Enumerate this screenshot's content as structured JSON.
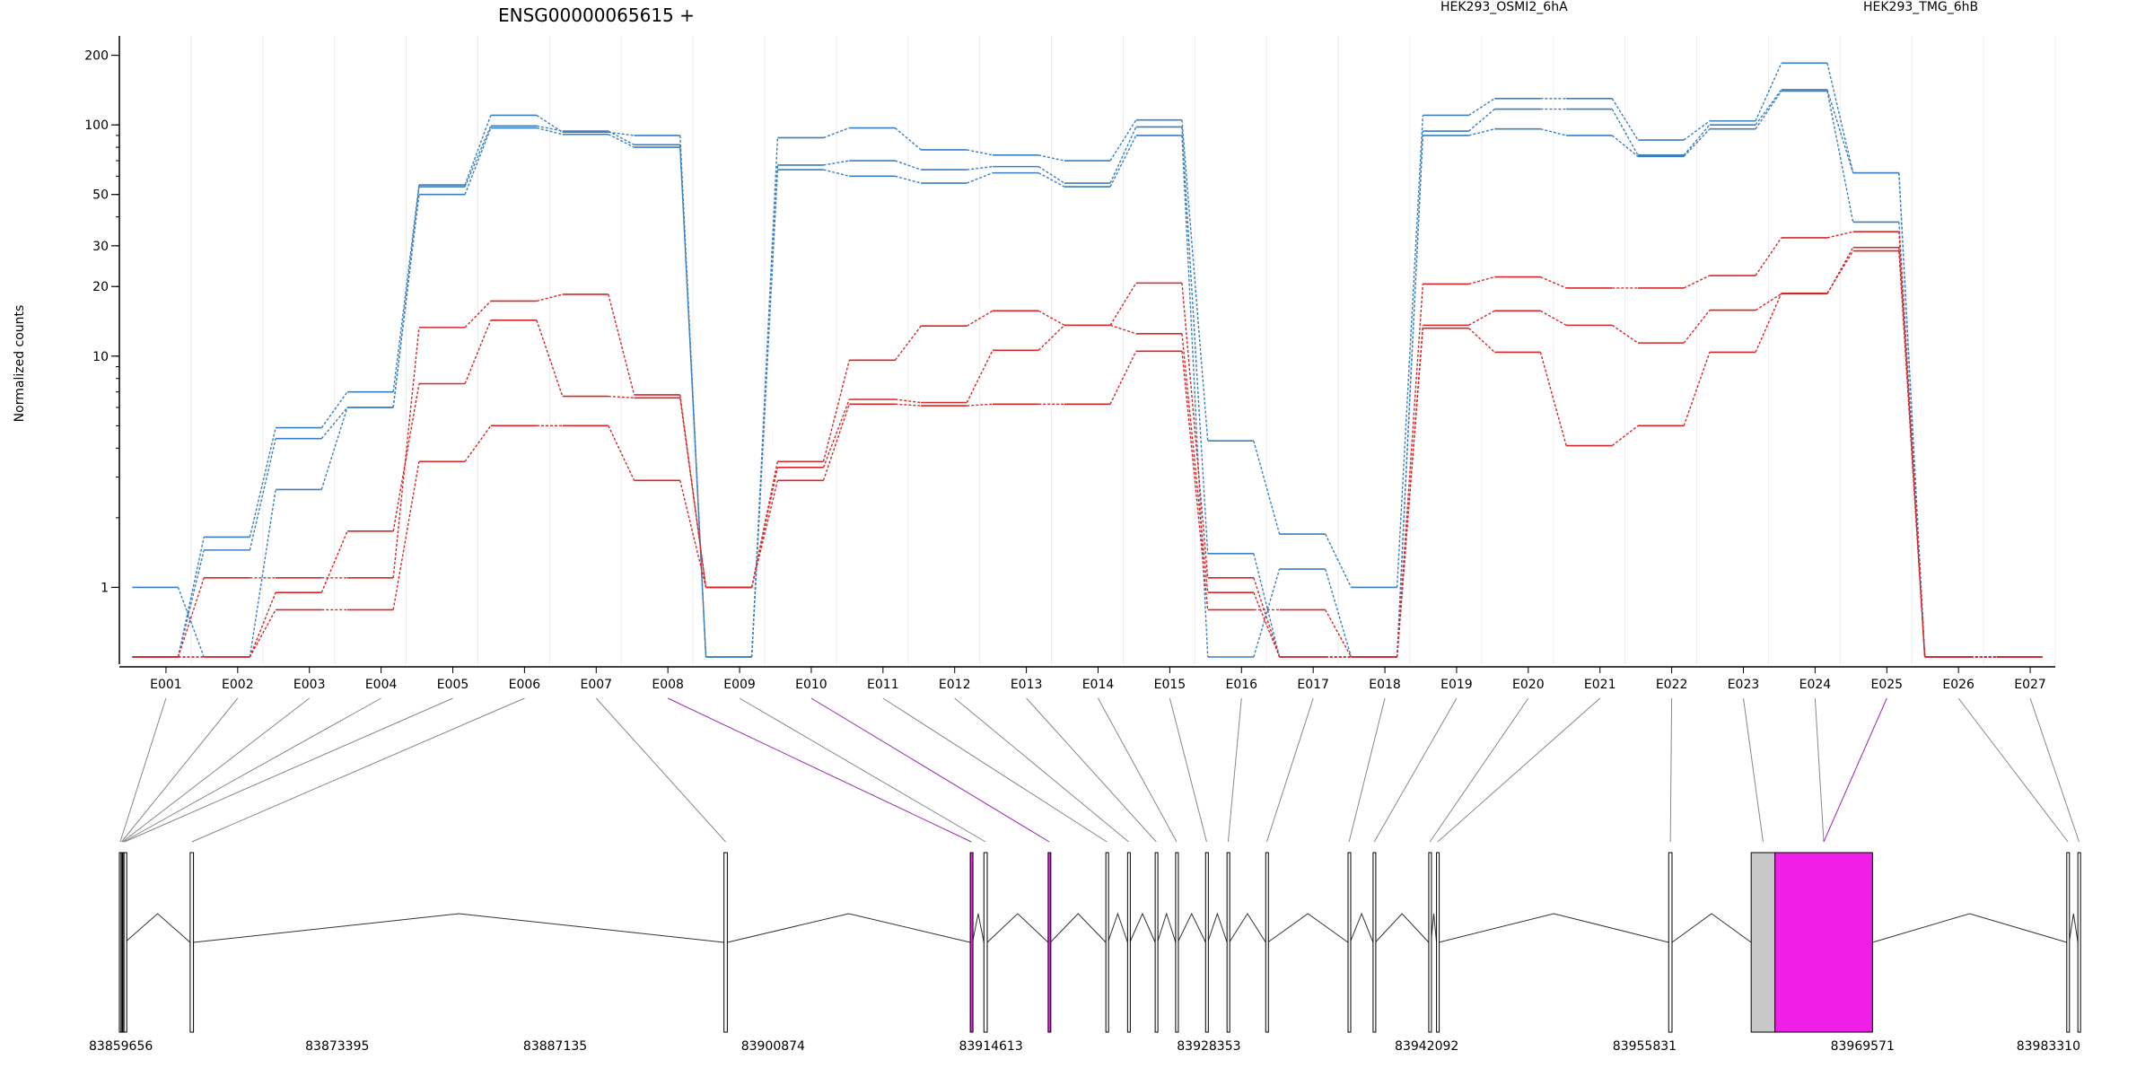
{
  "chart_data": {
    "type": "line",
    "title": "ENSG00000065615 +",
    "ylabel": "Normalized counts",
    "y_scale": "log",
    "y_ticks": [
      "200",
      "100",
      "50",
      "30",
      "20",
      "10",
      "1"
    ],
    "y_tick_values": [
      200,
      100,
      50,
      30,
      20,
      10,
      1
    ],
    "ylim": [
      0.5,
      270
    ],
    "grid": "vertical",
    "legend_position": "top",
    "groups": [
      {
        "name": "HEK293_OSMI2_6hA",
        "color": "#d62728"
      },
      {
        "name": "HEK293_TMG_6hB",
        "color": "#3a7fbf"
      }
    ],
    "categories": [
      "E001",
      "E002",
      "E003",
      "E004",
      "E005",
      "E006",
      "E007",
      "E008",
      "E009",
      "E010",
      "E011",
      "E012",
      "E013",
      "E014",
      "E015",
      "E016",
      "E017",
      "E018",
      "E019",
      "E020",
      "E021",
      "E022",
      "E023",
      "E024",
      "E025",
      "E026",
      "E027"
    ],
    "series": [
      {
        "group": "HEK293_TMG_6hB",
        "values": [
          0.5,
          1.65,
          4.9,
          7.0,
          55,
          110,
          93,
          90,
          0.5,
          88,
          97,
          78,
          74,
          70,
          105,
          4.3,
          1.7,
          1.0,
          110,
          130,
          130,
          86,
          104,
          185,
          62,
          0.5,
          0.5
        ]
      },
      {
        "group": "HEK293_TMG_6hB",
        "values": [
          0.5,
          1.45,
          4.4,
          6.0,
          54,
          99,
          94,
          82,
          0.5,
          67,
          70,
          64,
          66,
          56,
          98,
          1.4,
          0.5,
          0.5,
          94,
          117,
          117,
          74,
          100,
          142,
          62,
          0.5,
          0.5
        ]
      },
      {
        "group": "HEK293_TMG_6hB",
        "values": [
          1.0,
          0.5,
          2.65,
          6.0,
          50,
          97,
          91,
          80,
          0.5,
          64,
          60,
          56,
          62,
          54,
          90,
          0.5,
          1.2,
          0.5,
          90,
          96,
          90,
          73,
          96,
          140,
          38,
          0.5,
          0.5
        ]
      },
      {
        "group": "HEK293_OSMI2_6hA",
        "values": [
          0.5,
          1.1,
          1.1,
          1.1,
          13.3,
          17.3,
          18.5,
          6.8,
          1.0,
          3.5,
          9.6,
          13.5,
          15.7,
          13.6,
          20.7,
          1.1,
          0.5,
          0.5,
          20.5,
          22,
          19.7,
          19.7,
          22.3,
          32.5,
          34.5,
          0.5,
          0.5
        ]
      },
      {
        "group": "HEK293_OSMI2_6hA",
        "values": [
          0.5,
          0.5,
          0.95,
          1.75,
          7.6,
          14.3,
          6.7,
          6.6,
          1.0,
          3.3,
          6.5,
          6.3,
          10.6,
          13.6,
          12.5,
          0.95,
          0.5,
          0.5,
          13.6,
          15.7,
          13.6,
          11.4,
          15.8,
          18.6,
          29.5,
          0.5,
          0.5
        ]
      },
      {
        "group": "HEK293_OSMI2_6hA",
        "values": [
          0.5,
          0.5,
          0.8,
          0.8,
          3.5,
          5.0,
          5.0,
          2.9,
          1.0,
          2.9,
          6.2,
          6.1,
          6.2,
          6.2,
          10.5,
          0.8,
          0.8,
          0.5,
          13.2,
          10.4,
          4.1,
          5.0,
          10.4,
          18.7,
          28.5,
          0.5,
          0.5
        ]
      }
    ],
    "genomic_ticks": [
      "83859656",
      "83873395",
      "83887135",
      "83900874",
      "83914613",
      "83928353",
      "83942092",
      "83955831",
      "83969571",
      "83983310"
    ],
    "genomic_tick_values": [
      83859656,
      83873395,
      83887135,
      83900874,
      83914613,
      83928353,
      83942092,
      83955831,
      83969571,
      83983310
    ],
    "exons": [
      {
        "id": "E001",
        "start": 83859656,
        "end": 83859760,
        "highlight": false
      },
      {
        "id": "E002",
        "start": 83859760,
        "end": 83859830,
        "highlight": false
      },
      {
        "id": "E003",
        "start": 83859830,
        "end": 83859880,
        "highlight": false
      },
      {
        "id": "E004",
        "start": 83859880,
        "end": 83859950,
        "highlight": false
      },
      {
        "id": "E005",
        "start": 83859950,
        "end": 83860010,
        "highlight": false
      },
      {
        "id": "E006",
        "start": 83864120,
        "end": 83864330,
        "highlight": false
      },
      {
        "id": "E007",
        "start": 83897780,
        "end": 83897990,
        "highlight": false
      },
      {
        "id": "E008",
        "start": 83913310,
        "end": 83913450,
        "highlight": true
      },
      {
        "id": "E009",
        "start": 83914170,
        "end": 83914380,
        "highlight": false
      },
      {
        "id": "E010",
        "start": 83918220,
        "end": 83918360,
        "highlight": true
      },
      {
        "id": "E011",
        "start": 83921860,
        "end": 83921990,
        "highlight": false
      },
      {
        "id": "E012",
        "start": 83923230,
        "end": 83923370,
        "highlight": false
      },
      {
        "id": "E013",
        "start": 83924970,
        "end": 83925110,
        "highlight": false
      },
      {
        "id": "E014",
        "start": 83926260,
        "end": 83926390,
        "highlight": false
      },
      {
        "id": "E015",
        "start": 83928150,
        "end": 83928280,
        "highlight": false
      },
      {
        "id": "E016",
        "start": 83929500,
        "end": 83929640,
        "highlight": false
      },
      {
        "id": "E017",
        "start": 83931940,
        "end": 83932070,
        "highlight": false
      },
      {
        "id": "E018",
        "start": 83937130,
        "end": 83937260,
        "highlight": false
      },
      {
        "id": "E019",
        "start": 83938710,
        "end": 83938850,
        "highlight": false
      },
      {
        "id": "E020",
        "start": 83942220,
        "end": 83942360,
        "highlight": false
      },
      {
        "id": "E021",
        "start": 83942710,
        "end": 83942850,
        "highlight": false
      },
      {
        "id": "E022",
        "start": 83957350,
        "end": 83957560,
        "highlight": false
      },
      {
        "id": "E023",
        "start": 83962550,
        "end": 83964050,
        "highlight": false
      },
      {
        "id": "E024",
        "start": 83964050,
        "end": 83970200,
        "highlight": true
      },
      {
        "id": "E025",
        "start": 83982450,
        "end": 83982600,
        "highlight": false
      },
      {
        "id": "E026",
        "start": 83983150,
        "end": 83983310,
        "highlight": false
      }
    ],
    "exon_to_segment": [
      0,
      1,
      2,
      3,
      4,
      5,
      6,
      7,
      8,
      9,
      10,
      11,
      12,
      13,
      14,
      15,
      16,
      17,
      18,
      19,
      20,
      21,
      22,
      23,
      23,
      24,
      25
    ]
  }
}
